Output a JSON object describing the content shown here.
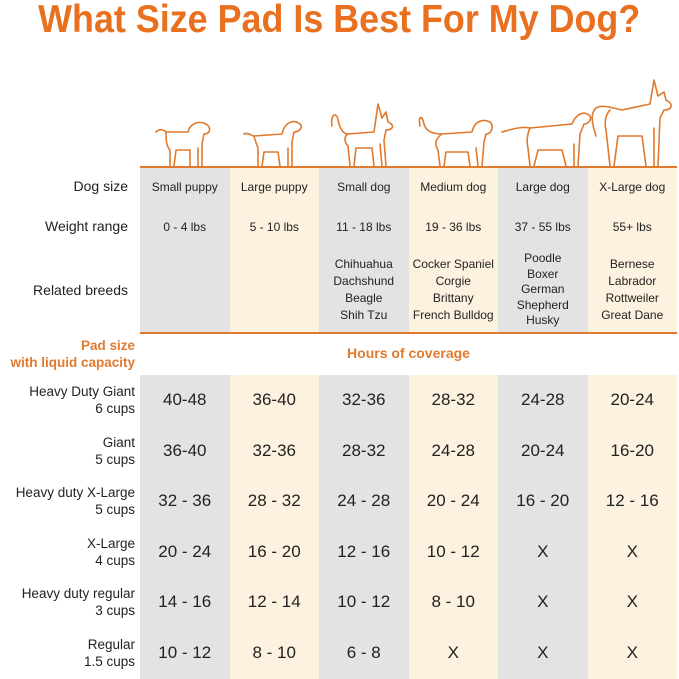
{
  "title": "What Size Pad Is Best For My Dog?",
  "colors": {
    "accent": "#e8701f",
    "gray_column": "#e3e3e3",
    "cream_column": "#fdf2df"
  },
  "row_labels": {
    "dog_size": "Dog size",
    "weight": "Weight range",
    "breeds": "Related breeds"
  },
  "columns": [
    {
      "size": "Small puppy",
      "weight": "0 - 4 lbs",
      "breeds": []
    },
    {
      "size": "Large puppy",
      "weight": "5 - 10 lbs",
      "breeds": []
    },
    {
      "size": "Small dog",
      "weight": "11 - 18 lbs",
      "breeds": [
        "Chihuahua",
        "Dachshund",
        "Beagle",
        "Shih Tzu"
      ]
    },
    {
      "size": "Medium dog",
      "weight": "19 - 36 lbs",
      "breeds": [
        "Cocker Spaniel",
        "Corgie",
        "Brittany",
        "French Bulldog"
      ]
    },
    {
      "size": "Large dog",
      "weight": "37 - 55 lbs",
      "breeds": [
        "Poodle",
        "Boxer",
        "German",
        "Shepherd",
        "Husky"
      ]
    },
    {
      "size": "X-Large dog",
      "weight": "55+ lbs",
      "breeds": [
        "Bernese",
        "Labrador",
        "Rottweiler",
        "Great Dane"
      ]
    }
  ],
  "pad_header": {
    "line1": "Pad size",
    "line2": "with liquid capacity",
    "coverage": "Hours of coverage"
  },
  "pads": [
    {
      "name": "Heavy Duty Giant",
      "capacity": "6 cups",
      "hours": [
        "40-48",
        "36-40",
        "32-36",
        "28-32",
        "24-28",
        "20-24"
      ]
    },
    {
      "name": "Giant",
      "capacity": "5 cups",
      "hours": [
        "36-40",
        "32-36",
        "28-32",
        "24-28",
        "20-24",
        "16-20"
      ]
    },
    {
      "name": "Heavy duty X-Large",
      "capacity": "5 cups",
      "hours": [
        "32 - 36",
        "28 - 32",
        "24 - 28",
        "20 - 24",
        "16 - 20",
        "12 - 16"
      ]
    },
    {
      "name": "X-Large",
      "capacity": "4 cups",
      "hours": [
        "20 - 24",
        "16 - 20",
        "12 - 16",
        "10 - 12",
        "X",
        "X"
      ]
    },
    {
      "name": "Heavy duty regular",
      "capacity": "3 cups",
      "hours": [
        "14 - 16",
        "12 - 14",
        "10 - 12",
        "8 - 10",
        "X",
        "X"
      ]
    },
    {
      "name": "Regular",
      "capacity": "1.5 cups",
      "hours": [
        "10 - 12",
        "8 - 10",
        "6 - 8",
        "X",
        "X",
        "X"
      ]
    }
  ]
}
